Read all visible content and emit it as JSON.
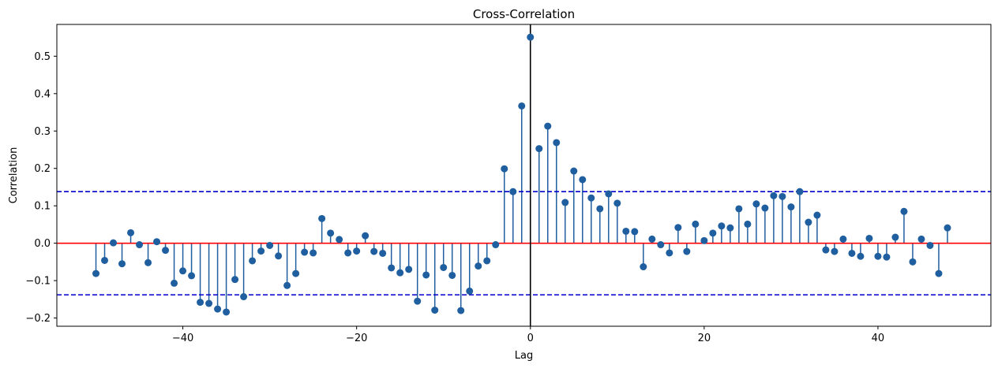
{
  "chart_data": {
    "type": "stem",
    "title": "Cross-Correlation",
    "xlabel": "Lag",
    "ylabel": "Correlation",
    "xlim": [
      -54.5,
      53
    ],
    "ylim": [
      -0.222,
      0.585
    ],
    "x_ticks": [
      -40,
      -20,
      0,
      20,
      40
    ],
    "x_tick_labels": [
      "−40",
      "−20",
      "0",
      "20",
      "40"
    ],
    "y_ticks": [
      -0.2,
      -0.1,
      0.0,
      0.1,
      0.2,
      0.3,
      0.4,
      0.5
    ],
    "y_tick_labels": [
      "−0.2",
      "−0.1",
      "0.0",
      "0.1",
      "0.2",
      "0.3",
      "0.4",
      "0.5"
    ],
    "zero_line": {
      "y": 0.0,
      "color": "#ff0000"
    },
    "confidence_bounds": {
      "upper": 0.138,
      "lower": -0.138,
      "color": "#0000cc",
      "style": "dashed"
    },
    "vertical_marker": {
      "x": 0,
      "color": "#000000"
    },
    "stem_color": "#1f5f9f",
    "lags": [
      -50,
      -49,
      -48,
      -47,
      -46,
      -45,
      -44,
      -43,
      -42,
      -41,
      -40,
      -39,
      -38,
      -37,
      -36,
      -35,
      -34,
      -33,
      -32,
      -31,
      -30,
      -29,
      -28,
      -27,
      -26,
      -25,
      -24,
      -23,
      -22,
      -21,
      -20,
      -19,
      -18,
      -17,
      -16,
      -15,
      -14,
      -13,
      -12,
      -11,
      -10,
      -9,
      -8,
      -7,
      -6,
      -5,
      -4,
      -3,
      -2,
      -1,
      0,
      1,
      2,
      3,
      4,
      5,
      6,
      7,
      8,
      9,
      10,
      11,
      12,
      13,
      14,
      15,
      16,
      17,
      18,
      19,
      20,
      21,
      22,
      23,
      24,
      25,
      26,
      27,
      28,
      29,
      30,
      31,
      32,
      33,
      34,
      35,
      36,
      37,
      38,
      39,
      40,
      41,
      42,
      43,
      44,
      45,
      46,
      47,
      48
    ],
    "values": [
      -0.081,
      -0.046,
      0.001,
      -0.055,
      0.028,
      -0.004,
      -0.052,
      0.004,
      -0.019,
      -0.107,
      -0.074,
      -0.087,
      -0.158,
      -0.161,
      -0.176,
      -0.184,
      -0.097,
      -0.143,
      -0.047,
      -0.021,
      -0.006,
      -0.034,
      -0.113,
      -0.081,
      -0.024,
      -0.026,
      0.066,
      0.027,
      0.01,
      -0.026,
      -0.021,
      0.02,
      -0.022,
      -0.027,
      -0.066,
      -0.079,
      -0.07,
      -0.155,
      -0.085,
      -0.179,
      -0.065,
      -0.086,
      -0.18,
      -0.128,
      -0.061,
      -0.047,
      -0.004,
      0.199,
      0.138,
      0.367,
      0.551,
      0.253,
      0.313,
      0.269,
      0.109,
      0.193,
      0.17,
      0.121,
      0.092,
      0.132,
      0.107,
      0.032,
      0.031,
      -0.063,
      0.011,
      -0.004,
      -0.026,
      0.042,
      -0.022,
      0.051,
      0.007,
      0.027,
      0.046,
      0.041,
      0.092,
      0.051,
      0.105,
      0.094,
      0.127,
      0.125,
      0.097,
      0.138,
      0.056,
      0.075,
      -0.018,
      -0.022,
      0.011,
      -0.027,
      -0.035,
      0.013,
      -0.035,
      -0.037,
      0.016,
      0.085,
      -0.05,
      0.011,
      -0.006,
      -0.081,
      0.041
    ]
  }
}
